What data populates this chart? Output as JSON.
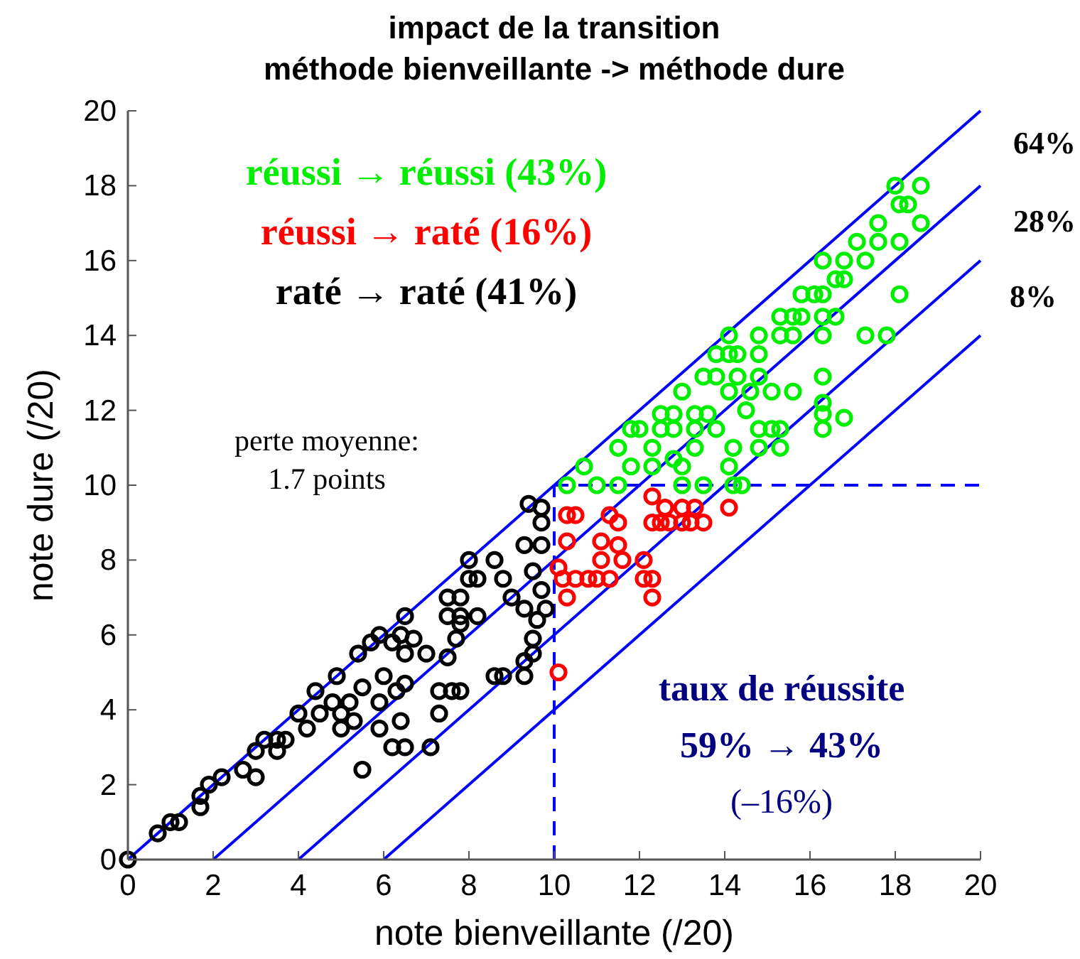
{
  "chart_data": {
    "type": "scatter",
    "title": "impact de la transition\nméthode bienveillante -> méthode dure",
    "xlabel": "note bienveillante (/20)",
    "ylabel": "note dure (/20)",
    "xlim": [
      0,
      20
    ],
    "ylim": [
      0,
      20
    ],
    "xticks": [
      0,
      2,
      4,
      6,
      8,
      10,
      12,
      14,
      16,
      18,
      20
    ],
    "yticks": [
      0,
      2,
      4,
      6,
      8,
      10,
      12,
      14,
      16,
      18,
      20
    ],
    "grid": false,
    "legend": "top left",
    "marker": "circle",
    "series": [
      {
        "type": "line",
        "color": "#0000ff",
        "marker": "none",
        "line_style": "solid",
        "x": [
          0,
          20
        ],
        "values": [
          0,
          20
        ]
      },
      {
        "type": "line",
        "color": "#0000ff",
        "marker": "none",
        "line_style": "solid",
        "x": [
          2,
          20
        ],
        "values": [
          0,
          18
        ]
      },
      {
        "type": "line",
        "color": "#0000ff",
        "marker": "none",
        "line_style": "solid",
        "x": [
          4,
          20
        ],
        "values": [
          0,
          16
        ]
      },
      {
        "type": "line",
        "color": "#0000ff",
        "marker": "none",
        "line_style": "solid",
        "x": [
          6,
          20
        ],
        "values": [
          0,
          14
        ]
      },
      {
        "type": "line",
        "color": "#0000ff",
        "marker": "none",
        "line_style": "dashed",
        "x": [
          10,
          10
        ],
        "values": [
          0,
          10
        ]
      },
      {
        "type": "line",
        "color": "#0000ff",
        "marker": "none",
        "line_style": "dashed",
        "x": [
          10,
          20
        ],
        "values": [
          10,
          10
        ]
      },
      {
        "name": "réussi → réussi (43%)",
        "color": "#00ee00",
        "x": [
          10.3,
          10.7,
          11,
          11.5,
          11.5,
          11.8,
          12,
          11.8,
          12.3,
          12.3,
          12.5,
          12.5,
          12.8,
          12.8,
          12.8,
          13,
          13,
          13,
          13.3,
          13.3,
          13.6,
          13.8,
          13.3,
          13.5,
          13.8,
          13.8,
          14.1,
          14.1,
          14.3,
          14.3,
          14.1,
          14.6,
          14.5,
          14.8,
          14.8,
          14.8,
          14.8,
          15.1,
          15.1,
          15.3,
          14.8,
          15.3,
          14.2,
          14.1,
          14.2,
          14.4,
          13.5,
          15.3,
          15.3,
          15.6,
          15.8,
          15.6,
          15.6,
          15.8,
          16.1,
          16.3,
          16.3,
          16.6,
          16.3,
          16.3,
          16.8,
          16.6,
          16.8,
          17.1,
          17.3,
          17.6,
          17.6,
          17.3,
          17.8,
          18.1,
          18.1,
          18,
          18.1,
          18.3,
          18.6,
          18.6,
          16.3,
          16.3,
          16.3,
          16.8,
          16.3
        ],
        "values": [
          10,
          10.5,
          10,
          10,
          11,
          11.5,
          11.5,
          10.5,
          11,
          10.5,
          11.9,
          11.5,
          11.9,
          11.5,
          10.7,
          10.5,
          10,
          12.5,
          11.9,
          11.5,
          11.9,
          11.5,
          11,
          12.9,
          12.9,
          13.5,
          14,
          13.5,
          13.5,
          12.9,
          12.5,
          12.5,
          12,
          13.5,
          12.9,
          14,
          11.5,
          12.5,
          11.5,
          11.5,
          11,
          11,
          11,
          10.5,
          10,
          10,
          10,
          14,
          14.5,
          14.5,
          14.5,
          14,
          12.5,
          15.1,
          15.1,
          15.1,
          14.5,
          14.5,
          14,
          16,
          16,
          15.5,
          15.5,
          16.5,
          16,
          17,
          16.5,
          14,
          14,
          16.5,
          15.1,
          18,
          17.5,
          17.5,
          18,
          17,
          12.9,
          12.2,
          11.9,
          11.8,
          11.5
        ]
      },
      {
        "name": "réussi → raté (16%)",
        "color": "#ff0000",
        "x": [
          10.3,
          10.5,
          10.3,
          10.1,
          10.3,
          10.2,
          10.5,
          10.8,
          11,
          11.3,
          11.1,
          11.1,
          11.5,
          11.6,
          11.3,
          11.5,
          12.1,
          12.1,
          12.3,
          12.3,
          12.3,
          12.6,
          12.3,
          12.5,
          12.7,
          13,
          13.3,
          13,
          13.2,
          13.5,
          14.1,
          10.1
        ],
        "values": [
          9.2,
          9.2,
          8.5,
          7.8,
          7,
          7.5,
          7.5,
          7.5,
          7.5,
          7.5,
          8.5,
          8,
          8.4,
          8,
          9.2,
          9,
          8,
          7.5,
          7.5,
          7,
          9.7,
          9.4,
          9,
          9,
          9,
          9.4,
          9.4,
          9,
          9,
          9,
          9.4,
          5
        ]
      },
      {
        "name": "raté → raté (41%)",
        "color": "#000000",
        "x": [
          0,
          0.7,
          1,
          1.2,
          1.7,
          1.7,
          1.9,
          2.2,
          2.7,
          3,
          3,
          3.2,
          3.5,
          3.7,
          3.5,
          4,
          4.2,
          4.4,
          4.5,
          4.8,
          5,
          5,
          5.2,
          4.9,
          5.3,
          5.5,
          5.5,
          5.4,
          5.7,
          5.9,
          6,
          5.9,
          5.9,
          6.3,
          6.5,
          6.2,
          6.5,
          6.4,
          6.2,
          6.4,
          6.5,
          6.7,
          6.5,
          7,
          7.1,
          7.3,
          7.3,
          7.6,
          7.8,
          7.5,
          7.5,
          7.5,
          7.7,
          7.8,
          7.8,
          7.8,
          8.2,
          8,
          8,
          8.2,
          8.6,
          8.8,
          9,
          8.6,
          8.8,
          9.3,
          9.3,
          9.5,
          9.5,
          9.6,
          9.3,
          9.8,
          9.7,
          9.5,
          9.3,
          9.7,
          9.4,
          9.7,
          9.7
        ],
        "values": [
          0,
          0.7,
          1,
          1,
          1.4,
          1.7,
          2,
          2.2,
          2.4,
          2.2,
          2.9,
          3.2,
          3.2,
          3.2,
          2.9,
          3.9,
          3.5,
          4.5,
          3.9,
          4.2,
          3.9,
          3.5,
          4.2,
          4.9,
          3.7,
          4.6,
          2.4,
          5.5,
          5.8,
          6,
          4.9,
          4.2,
          3.5,
          4.5,
          4.7,
          3,
          3,
          3.7,
          5.8,
          6,
          6.5,
          5.9,
          5.5,
          5.5,
          3,
          3.9,
          4.5,
          4.5,
          4.5,
          5.4,
          6.5,
          7,
          5.9,
          6.5,
          7,
          6.3,
          6.5,
          7.5,
          8,
          7.5,
          8,
          7.5,
          7,
          4.9,
          4.9,
          4.9,
          5.3,
          5.5,
          5.9,
          6.4,
          6.7,
          6.7,
          7.2,
          7.7,
          8.4,
          8.4,
          9.5,
          9.4,
          9
        ]
      }
    ],
    "annotations": [
      "64%",
      "28%",
      "8%",
      "perte moyenne:\n1.7 points",
      "taux de réussite",
      "59% → 43%",
      "(–16%)"
    ]
  }
}
